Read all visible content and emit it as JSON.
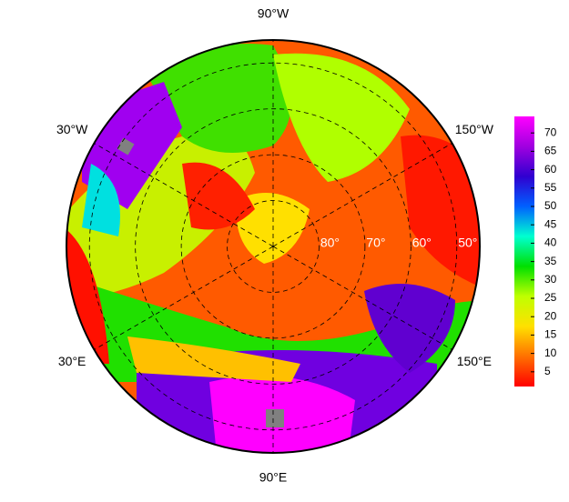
{
  "chart_data": {
    "type": "polar-map",
    "longitude_labels": [
      {
        "value": -90,
        "label": "90°W"
      },
      {
        "value": -30,
        "label": "30°W"
      },
      {
        "value": -150,
        "label": "150°W"
      },
      {
        "value": 30,
        "label": "30°E"
      },
      {
        "value": 150,
        "label": "150°E"
      },
      {
        "value": 90,
        "label": "90°E"
      }
    ],
    "rlim": [
      90,
      45
    ],
    "latitude_ticks": [
      {
        "value": 80,
        "label": "80°"
      },
      {
        "value": 70,
        "label": "70°"
      },
      {
        "value": 60,
        "label": "60°"
      },
      {
        "value": 50,
        "label": "50°"
      }
    ],
    "colorbar": {
      "lim": [
        1,
        74.5
      ],
      "ticks": [
        5,
        10,
        15,
        20,
        25,
        30,
        35,
        40,
        45,
        50,
        55,
        60,
        65,
        70
      ],
      "colormap": [
        "#ff0000",
        "#ff7000",
        "#ffe000",
        "#c0ff00",
        "#00e000",
        "#00ffd0",
        "#0060ff",
        "#3000d0",
        "#a000e0",
        "#ff00ff"
      ]
    }
  }
}
